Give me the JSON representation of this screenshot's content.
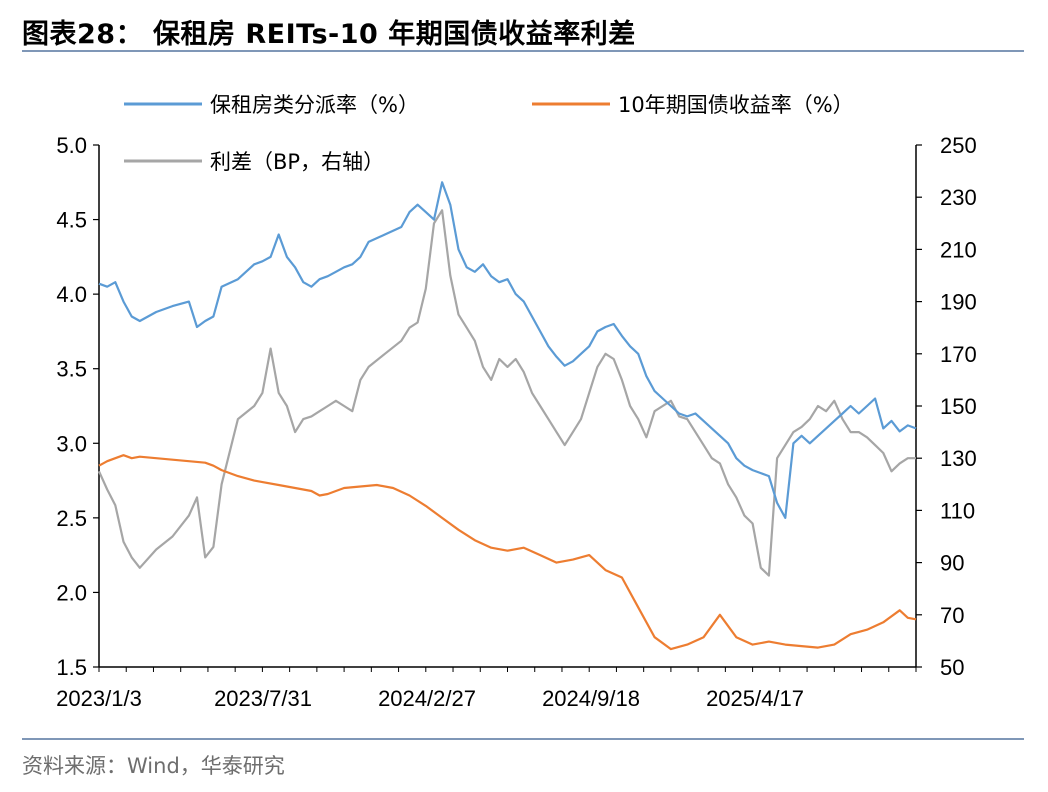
{
  "title": "图表28：  保租房 REITs-10 年期国债收益率利差",
  "source": "资料来源：Wind，华泰研究",
  "colors": {
    "reits": "#5b9bd5",
    "bond": "#ed7d31",
    "spread": "#a6a6a6",
    "accent": "#7f97b7"
  },
  "chart_data": {
    "type": "line",
    "title": "保租房 REITs-10 年期国债收益率利差",
    "x_ticks": [
      "2023/1/3",
      "2023/7/31",
      "2024/2/27",
      "2024/9/18",
      "2025/4/17"
    ],
    "left_axis": {
      "ylim": [
        1.5,
        5.0
      ],
      "ticks": [
        "5.0",
        "4.5",
        "4.0",
        "3.5",
        "3.0",
        "2.5",
        "2.0",
        "1.5"
      ]
    },
    "right_axis": {
      "ylim": [
        50,
        250
      ],
      "ticks": [
        "250",
        "230",
        "210",
        "190",
        "170",
        "150",
        "130",
        "110",
        "90",
        "70",
        "50"
      ]
    },
    "legend_placement": "top",
    "x_domain": [
      0,
      100
    ],
    "series": [
      {
        "name": "保租房类分派率（%）",
        "axis": "left",
        "color": "#5b9bd5",
        "x": [
          0,
          1,
          2,
          3,
          4,
          5,
          7,
          9,
          11,
          12,
          13,
          14,
          15,
          17,
          19,
          20,
          21,
          22,
          23,
          24,
          25,
          26,
          27,
          28,
          29,
          30,
          31,
          32,
          33,
          35,
          37,
          38,
          39,
          40,
          41,
          42,
          43,
          44,
          45,
          46,
          47,
          48,
          49,
          50,
          51,
          52,
          53,
          54,
          55,
          56,
          57,
          58,
          59,
          60,
          61,
          62,
          63,
          64,
          65,
          66,
          67,
          68,
          69,
          70,
          71,
          72,
          73,
          74,
          75,
          76,
          77,
          78,
          79,
          80,
          81,
          82,
          83,
          84,
          85,
          86,
          87,
          88,
          89,
          90,
          91,
          92,
          93,
          94,
          95,
          96,
          97,
          98,
          99,
          100
        ],
        "values": [
          4.07,
          4.05,
          4.08,
          3.95,
          3.85,
          3.82,
          3.88,
          3.92,
          3.95,
          3.78,
          3.82,
          3.85,
          4.05,
          4.1,
          4.2,
          4.22,
          4.25,
          4.4,
          4.25,
          4.18,
          4.08,
          4.05,
          4.1,
          4.12,
          4.15,
          4.18,
          4.2,
          4.25,
          4.35,
          4.4,
          4.45,
          4.55,
          4.6,
          4.55,
          4.5,
          4.75,
          4.6,
          4.3,
          4.18,
          4.15,
          4.2,
          4.12,
          4.08,
          4.1,
          4.0,
          3.95,
          3.85,
          3.75,
          3.65,
          3.58,
          3.52,
          3.55,
          3.6,
          3.65,
          3.75,
          3.78,
          3.8,
          3.72,
          3.65,
          3.6,
          3.45,
          3.35,
          3.3,
          3.25,
          3.2,
          3.18,
          3.2,
          3.15,
          3.1,
          3.05,
          3.0,
          2.9,
          2.85,
          2.82,
          2.8,
          2.78,
          2.6,
          2.5,
          3.0,
          3.05,
          3.0,
          3.05,
          3.1,
          3.15,
          3.2,
          3.25,
          3.2,
          3.25,
          3.3,
          3.1,
          3.15,
          3.08,
          3.12,
          3.1
        ]
      },
      {
        "name": "10年期国债收益率（%）",
        "axis": "left",
        "color": "#ed7d31",
        "x": [
          0,
          1,
          2,
          3,
          4,
          5,
          7,
          9,
          11,
          13,
          14,
          15,
          17,
          19,
          20,
          22,
          24,
          26,
          27,
          28,
          29,
          30,
          32,
          34,
          36,
          38,
          40,
          42,
          44,
          46,
          48,
          50,
          52,
          54,
          56,
          58,
          60,
          62,
          64,
          66,
          68,
          70,
          72,
          74,
          76,
          78,
          80,
          82,
          84,
          86,
          88,
          90,
          92,
          94,
          96,
          98,
          99,
          100
        ],
        "values": [
          2.85,
          2.88,
          2.9,
          2.92,
          2.9,
          2.91,
          2.9,
          2.89,
          2.88,
          2.87,
          2.85,
          2.82,
          2.78,
          2.75,
          2.74,
          2.72,
          2.7,
          2.68,
          2.65,
          2.66,
          2.68,
          2.7,
          2.71,
          2.72,
          2.7,
          2.65,
          2.58,
          2.5,
          2.42,
          2.35,
          2.3,
          2.28,
          2.3,
          2.25,
          2.2,
          2.22,
          2.25,
          2.15,
          2.1,
          1.9,
          1.7,
          1.62,
          1.65,
          1.7,
          1.85,
          1.7,
          1.65,
          1.67,
          1.65,
          1.64,
          1.63,
          1.65,
          1.72,
          1.75,
          1.8,
          1.88,
          1.83,
          1.82
        ]
      },
      {
        "name": "利差（BP，右轴）",
        "axis": "right",
        "color": "#a6a6a6",
        "x": [
          0,
          1,
          2,
          3,
          4,
          5,
          7,
          9,
          11,
          12,
          13,
          14,
          15,
          17,
          19,
          20,
          21,
          22,
          23,
          24,
          25,
          26,
          27,
          28,
          29,
          30,
          31,
          32,
          33,
          35,
          37,
          38,
          39,
          40,
          41,
          42,
          43,
          44,
          45,
          46,
          47,
          48,
          49,
          50,
          51,
          52,
          53,
          54,
          55,
          56,
          57,
          58,
          59,
          60,
          61,
          62,
          63,
          64,
          65,
          66,
          67,
          68,
          69,
          70,
          71,
          72,
          73,
          74,
          75,
          76,
          77,
          78,
          79,
          80,
          81,
          82,
          83,
          84,
          85,
          86,
          87,
          88,
          89,
          90,
          91,
          92,
          93,
          94,
          95,
          96,
          97,
          98,
          99,
          100
        ],
        "values": [
          125,
          118,
          112,
          98,
          92,
          88,
          95,
          100,
          108,
          115,
          92,
          96,
          120,
          145,
          150,
          155,
          172,
          155,
          150,
          140,
          145,
          146,
          148,
          150,
          152,
          150,
          148,
          160,
          165,
          170,
          175,
          180,
          182,
          195,
          220,
          225,
          200,
          185,
          180,
          175,
          165,
          160,
          168,
          165,
          168,
          163,
          155,
          150,
          145,
          140,
          135,
          140,
          145,
          155,
          165,
          170,
          168,
          160,
          150,
          145,
          138,
          148,
          150,
          152,
          146,
          145,
          140,
          135,
          130,
          128,
          120,
          115,
          108,
          105,
          88,
          85,
          130,
          135,
          140,
          142,
          145,
          150,
          148,
          152,
          145,
          140,
          140,
          138,
          135,
          132,
          125,
          128,
          130,
          130
        ]
      }
    ]
  }
}
